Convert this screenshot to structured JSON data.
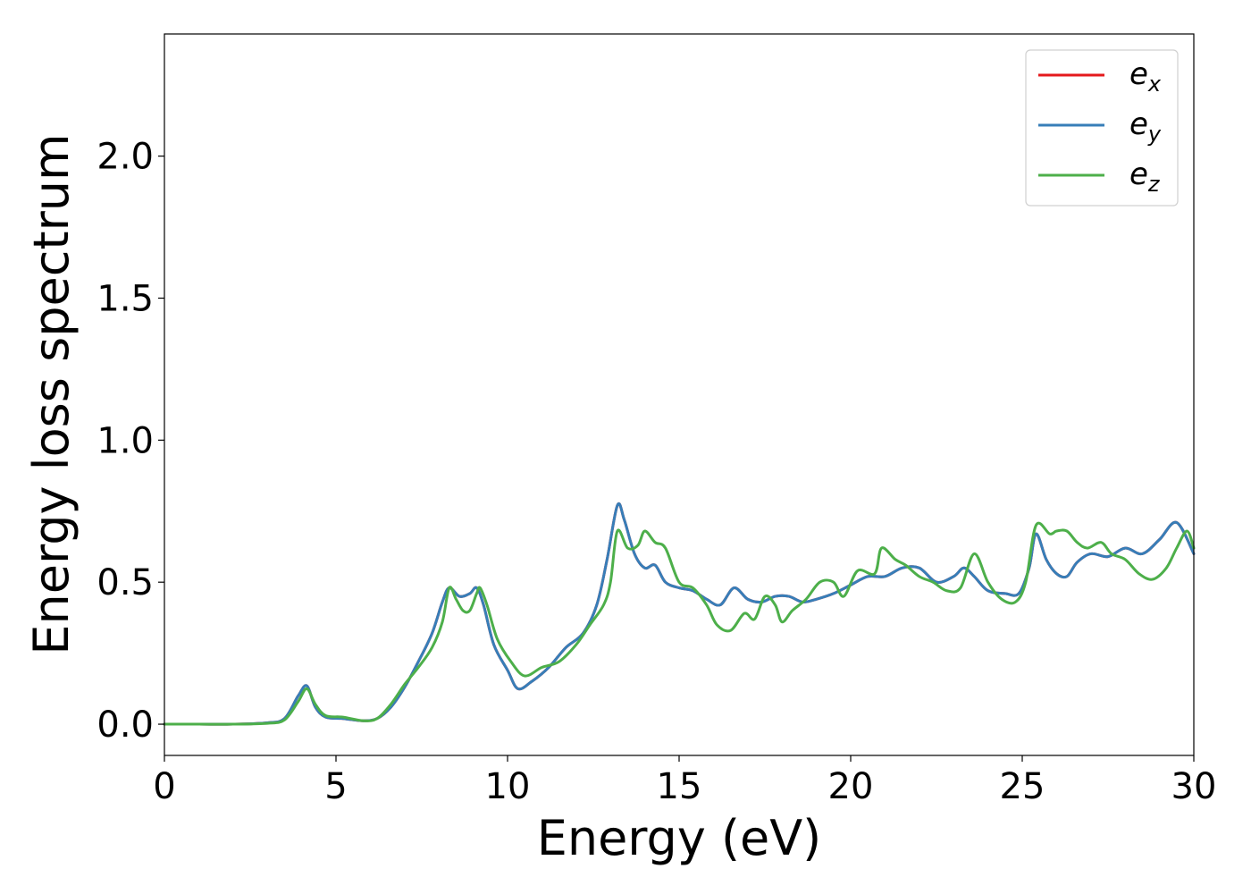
{
  "chart_data": {
    "type": "line",
    "title": "",
    "xlabel": "Energy (eV)",
    "ylabel": "Energy loss spectrum",
    "xlim": [
      0,
      30
    ],
    "ylim": [
      -0.11,
      2.43
    ],
    "xticks": [
      0,
      5,
      10,
      15,
      20,
      25,
      30
    ],
    "xtick_labels": [
      "0",
      "5",
      "10",
      "15",
      "20",
      "25",
      "30"
    ],
    "yticks": [
      0.0,
      0.5,
      1.0,
      1.5,
      2.0
    ],
    "ytick_labels": [
      "0.0",
      "0.5",
      "1.0",
      "1.5",
      "2.0"
    ],
    "grid": false,
    "legend_position": "top-right",
    "series": [
      {
        "name": "e_x",
        "legend_main": "e",
        "legend_sub": "x",
        "color": "#e41a1c",
        "x": [
          0,
          1,
          2,
          3,
          3.5,
          3.9,
          4.15,
          4.4,
          4.7,
          5.2,
          5.8,
          6.2,
          6.6,
          7.0,
          7.4,
          7.8,
          8.1,
          8.3,
          8.6,
          8.9,
          9.1,
          9.3,
          9.6,
          10.0,
          10.3,
          10.7,
          11.2,
          11.7,
          12.2,
          12.6,
          12.9,
          13.2,
          13.4,
          13.7,
          14.0,
          14.3,
          14.6,
          15.0,
          15.4,
          15.8,
          16.2,
          16.6,
          17.0,
          17.4,
          17.8,
          18.2,
          18.6,
          19.0,
          19.5,
          20.0,
          20.5,
          21.0,
          21.5,
          22.0,
          22.5,
          23.0,
          23.3,
          23.6,
          24.0,
          24.5,
          24.9,
          25.2,
          25.4,
          25.7,
          26.0,
          26.3,
          26.6,
          27.0,
          27.5,
          28.0,
          28.5,
          29.0,
          29.5,
          30.0
        ],
        "y": [
          0.0,
          0.0,
          0.0,
          0.005,
          0.02,
          0.1,
          0.135,
          0.06,
          0.025,
          0.02,
          0.012,
          0.02,
          0.06,
          0.13,
          0.22,
          0.32,
          0.43,
          0.48,
          0.45,
          0.46,
          0.48,
          0.42,
          0.28,
          0.19,
          0.125,
          0.15,
          0.2,
          0.27,
          0.32,
          0.42,
          0.58,
          0.77,
          0.72,
          0.6,
          0.55,
          0.56,
          0.5,
          0.48,
          0.47,
          0.44,
          0.42,
          0.48,
          0.44,
          0.43,
          0.45,
          0.45,
          0.43,
          0.44,
          0.46,
          0.49,
          0.52,
          0.52,
          0.55,
          0.55,
          0.5,
          0.52,
          0.55,
          0.52,
          0.47,
          0.46,
          0.46,
          0.55,
          0.67,
          0.58,
          0.53,
          0.52,
          0.57,
          0.6,
          0.59,
          0.62,
          0.6,
          0.65,
          0.71,
          0.6
        ]
      },
      {
        "name": "e_y",
        "legend_main": "e",
        "legend_sub": "y",
        "color": "#377eb8",
        "x": [
          0,
          1,
          2,
          3,
          3.5,
          3.9,
          4.15,
          4.4,
          4.7,
          5.2,
          5.8,
          6.2,
          6.6,
          7.0,
          7.4,
          7.8,
          8.1,
          8.3,
          8.6,
          8.9,
          9.1,
          9.3,
          9.6,
          10.0,
          10.3,
          10.7,
          11.2,
          11.7,
          12.2,
          12.6,
          12.9,
          13.2,
          13.4,
          13.7,
          14.0,
          14.3,
          14.6,
          15.0,
          15.4,
          15.8,
          16.2,
          16.6,
          17.0,
          17.4,
          17.8,
          18.2,
          18.6,
          19.0,
          19.5,
          20.0,
          20.5,
          21.0,
          21.5,
          22.0,
          22.5,
          23.0,
          23.3,
          23.6,
          24.0,
          24.5,
          24.9,
          25.2,
          25.4,
          25.7,
          26.0,
          26.3,
          26.6,
          27.0,
          27.5,
          28.0,
          28.5,
          29.0,
          29.5,
          30.0
        ],
        "y": [
          0.0,
          0.0,
          0.0,
          0.005,
          0.02,
          0.1,
          0.135,
          0.06,
          0.025,
          0.02,
          0.012,
          0.02,
          0.06,
          0.13,
          0.22,
          0.32,
          0.43,
          0.48,
          0.45,
          0.46,
          0.48,
          0.42,
          0.28,
          0.19,
          0.125,
          0.15,
          0.2,
          0.27,
          0.32,
          0.42,
          0.58,
          0.77,
          0.72,
          0.6,
          0.55,
          0.56,
          0.5,
          0.48,
          0.47,
          0.44,
          0.42,
          0.48,
          0.44,
          0.43,
          0.45,
          0.45,
          0.43,
          0.44,
          0.46,
          0.49,
          0.52,
          0.52,
          0.55,
          0.55,
          0.5,
          0.52,
          0.55,
          0.52,
          0.47,
          0.46,
          0.46,
          0.55,
          0.67,
          0.58,
          0.53,
          0.52,
          0.57,
          0.6,
          0.59,
          0.62,
          0.6,
          0.65,
          0.71,
          0.6
        ]
      },
      {
        "name": "e_z",
        "legend_main": "e",
        "legend_sub": "z",
        "color": "#4daf4a",
        "x": [
          0,
          1,
          2,
          3,
          3.5,
          3.9,
          4.15,
          4.4,
          4.7,
          5.2,
          5.8,
          6.2,
          6.6,
          7.0,
          7.4,
          7.8,
          8.1,
          8.3,
          8.5,
          8.7,
          8.9,
          9.1,
          9.2,
          9.4,
          9.7,
          10.1,
          10.5,
          11.0,
          11.5,
          12.0,
          12.4,
          12.8,
          13.0,
          13.2,
          13.5,
          13.8,
          14.0,
          14.3,
          14.6,
          15.0,
          15.4,
          15.8,
          16.1,
          16.5,
          16.9,
          17.2,
          17.5,
          17.8,
          18.0,
          18.3,
          18.7,
          19.1,
          19.5,
          19.8,
          20.2,
          20.7,
          20.9,
          21.3,
          21.6,
          22.0,
          22.4,
          22.8,
          23.2,
          23.6,
          24.0,
          24.4,
          24.8,
          25.1,
          25.4,
          25.8,
          26.0,
          26.3,
          26.6,
          26.9,
          27.3,
          27.6,
          28.0,
          28.4,
          28.8,
          29.2,
          29.5,
          29.8,
          30.0
        ],
        "y": [
          0.0,
          0.0,
          0.0,
          0.003,
          0.015,
          0.08,
          0.125,
          0.07,
          0.03,
          0.025,
          0.012,
          0.02,
          0.07,
          0.14,
          0.2,
          0.27,
          0.36,
          0.48,
          0.44,
          0.4,
          0.4,
          0.46,
          0.48,
          0.42,
          0.3,
          0.22,
          0.17,
          0.2,
          0.22,
          0.28,
          0.35,
          0.42,
          0.5,
          0.68,
          0.62,
          0.63,
          0.68,
          0.64,
          0.62,
          0.5,
          0.48,
          0.42,
          0.35,
          0.33,
          0.39,
          0.37,
          0.45,
          0.42,
          0.36,
          0.4,
          0.44,
          0.5,
          0.5,
          0.45,
          0.54,
          0.53,
          0.62,
          0.58,
          0.56,
          0.52,
          0.5,
          0.47,
          0.48,
          0.6,
          0.5,
          0.44,
          0.43,
          0.5,
          0.7,
          0.67,
          0.68,
          0.68,
          0.64,
          0.62,
          0.64,
          0.6,
          0.58,
          0.53,
          0.51,
          0.55,
          0.62,
          0.68,
          0.62
        ]
      }
    ]
  }
}
